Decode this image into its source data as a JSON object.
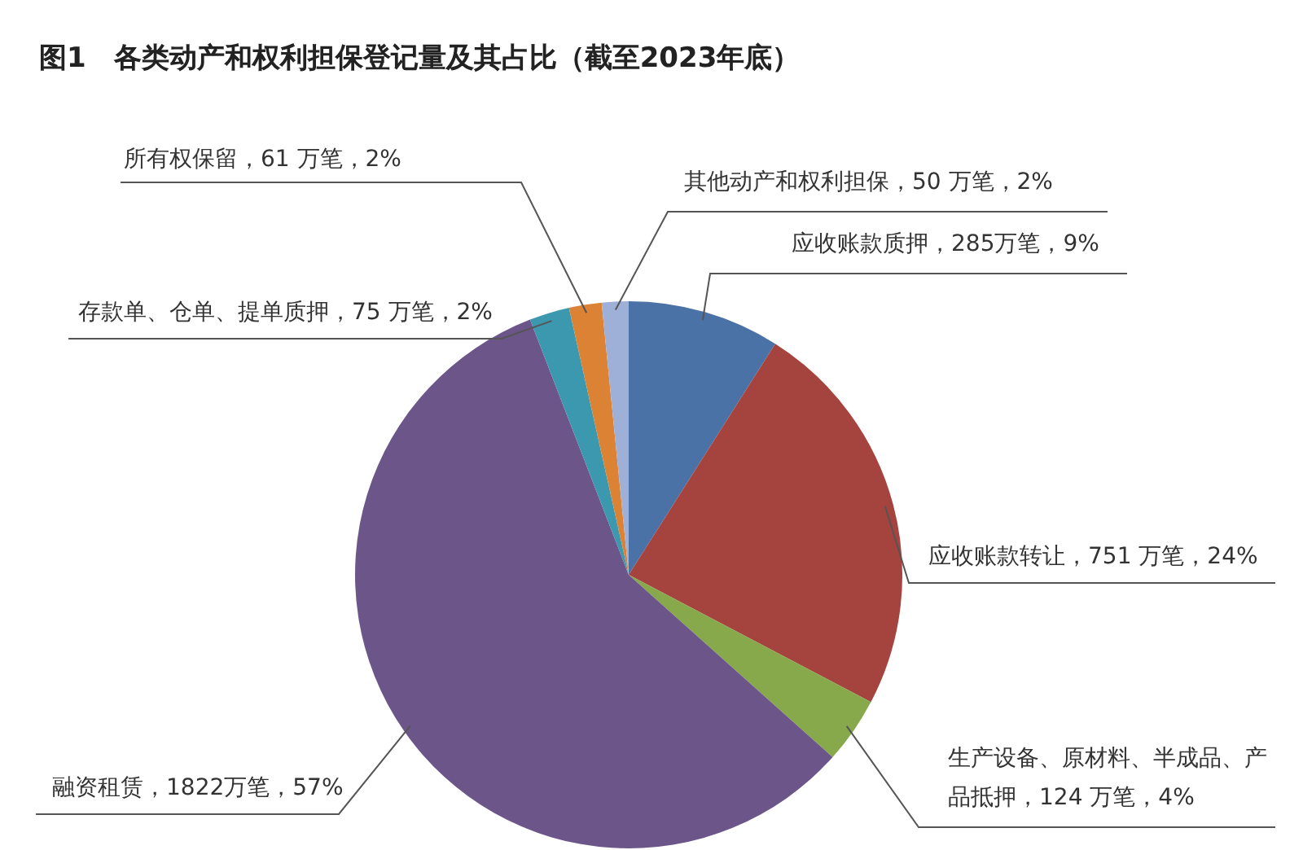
{
  "chart_data": {
    "type": "pie",
    "title": "图1　各类动产和权利担保登记量及其占比（截至2023年底）",
    "categories": [
      "应收账款质押",
      "应收账款转让",
      "生产设备、原材料、半成品、产品抵押",
      "融资租赁",
      "存款单、仓单、提单质押",
      "所有权保留",
      "其他动产和权利担保"
    ],
    "values": [
      285,
      751,
      124,
      1822,
      75,
      61,
      50
    ],
    "colors": [
      "#4a72a6",
      "#a5443f",
      "#88a84c",
      "#6c5589",
      "#3c98ae",
      "#dc8235",
      "#9fb0d8"
    ],
    "value_labels": [
      "285万笔，9%",
      "751 万笔，24%",
      "124 万笔，4%",
      "1822万笔，57%",
      "75 万笔，2%",
      "61 万笔，2%",
      "50 万笔，2%"
    ]
  }
}
